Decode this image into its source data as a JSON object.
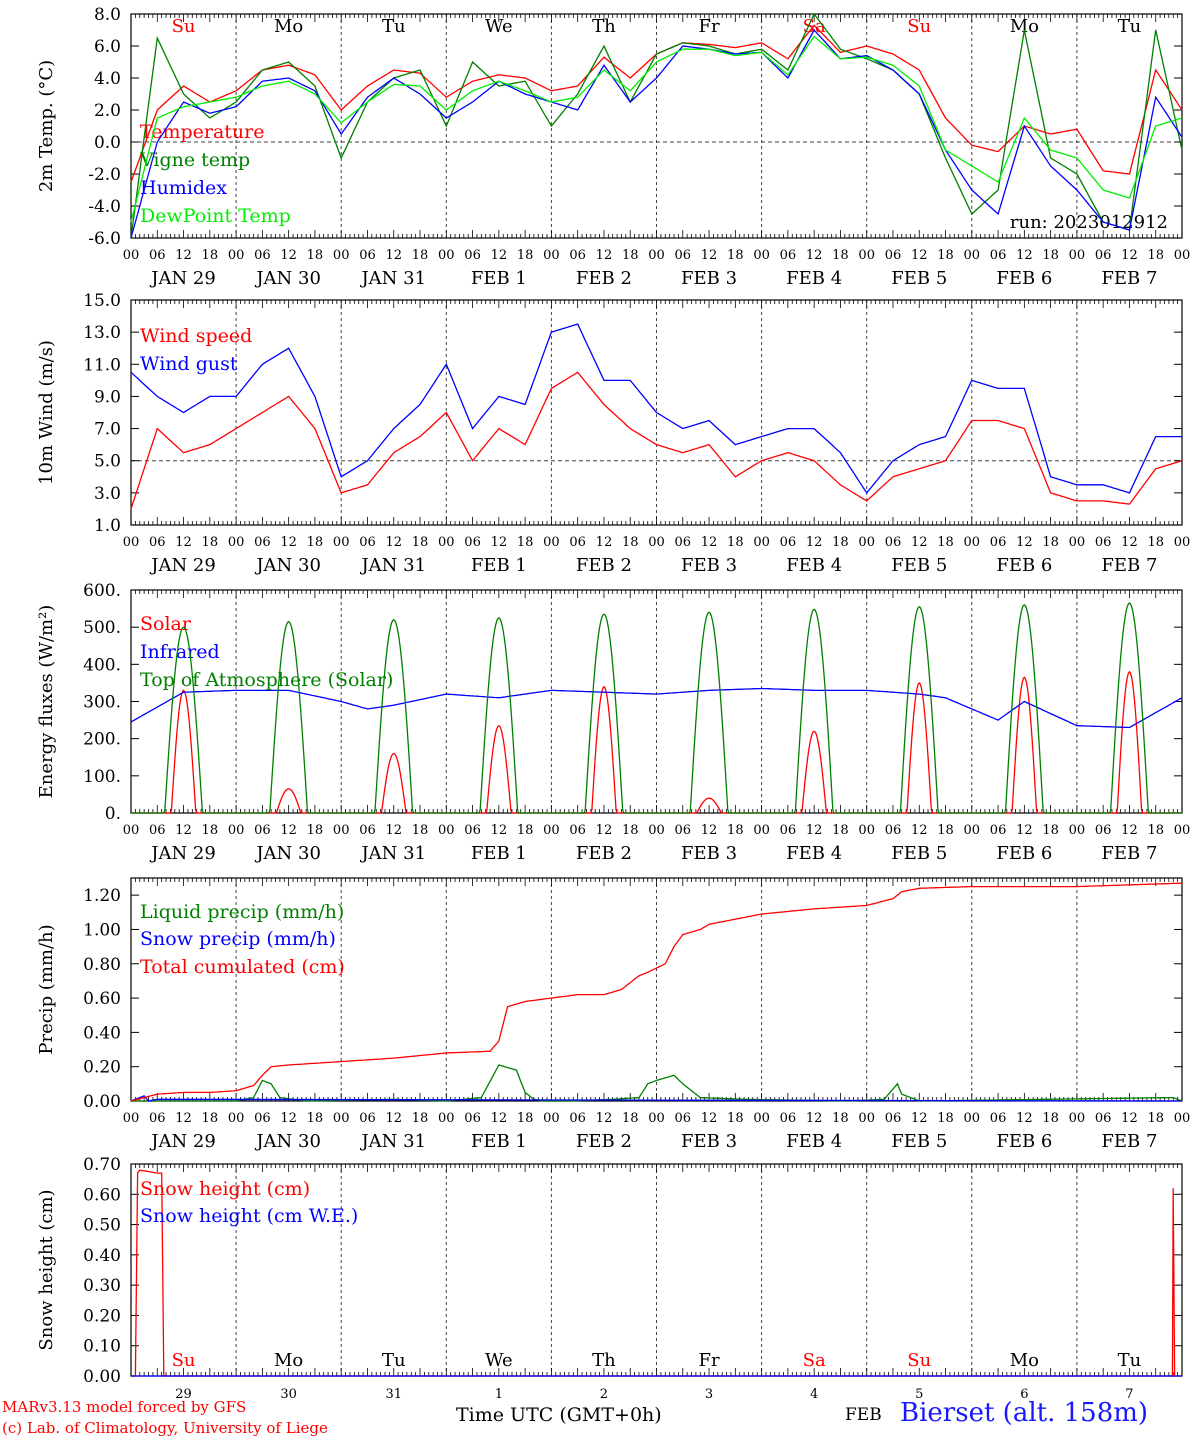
{
  "chart_data": [
    {
      "type": "line",
      "ylabel": "2m Temp. (°C)",
      "ylim": [
        -6,
        8
      ],
      "yticks": [
        "8.0",
        "6.0",
        "4.0",
        "2.0",
        "0.0",
        "-2.0",
        "-4.0",
        "-6.0"
      ],
      "ref_line": 0,
      "annotation": "run: 2023012912",
      "day_abbrev": [
        {
          "label": "Su",
          "color": "#ff0000"
        },
        {
          "label": "Mo",
          "color": "#000000"
        },
        {
          "label": "Tu",
          "color": "#000000"
        },
        {
          "label": "We",
          "color": "#000000"
        },
        {
          "label": "Th",
          "color": "#000000"
        },
        {
          "label": "Fr",
          "color": "#000000"
        },
        {
          "label": "Sa",
          "color": "#ff0000"
        },
        {
          "label": "Su",
          "color": "#ff0000"
        },
        {
          "label": "Mo",
          "color": "#000000"
        },
        {
          "label": "Tu",
          "color": "#000000"
        }
      ],
      "x_hours": [
        0,
        6,
        12,
        18,
        24,
        30,
        36,
        42,
        48,
        54,
        60,
        66,
        72,
        78,
        84,
        90,
        96,
        102,
        108,
        114,
        120,
        126,
        132,
        138,
        144,
        150,
        156,
        162,
        168,
        174,
        180,
        186,
        192,
        198,
        204,
        210,
        216,
        222,
        228,
        234,
        240
      ],
      "series": [
        {
          "name": "Temperature",
          "color": "#ff0000",
          "values": [
            -2.5,
            2.0,
            3.5,
            2.5,
            3.2,
            4.5,
            4.8,
            4.2,
            2.0,
            3.5,
            4.5,
            4.3,
            2.8,
            3.8,
            4.2,
            4.0,
            3.2,
            3.5,
            5.3,
            4.0,
            5.5,
            6.2,
            6.1,
            5.9,
            6.2,
            5.2,
            7.3,
            5.6,
            6.0,
            5.5,
            4.5,
            1.5,
            -0.2,
            -0.6,
            1.0,
            0.5,
            0.8,
            -1.8,
            -2.0,
            4.5,
            2.0
          ]
        },
        {
          "name": "Vigne temp",
          "color": "#008000",
          "values": [
            -6.0,
            6.5,
            3.0,
            1.5,
            2.5,
            4.5,
            5.0,
            3.5,
            -1.0,
            2.5,
            4.0,
            4.5,
            1.0,
            5.0,
            3.5,
            3.8,
            1.0,
            3.0,
            6.0,
            2.5,
            5.5,
            6.2,
            6.0,
            5.5,
            5.8,
            4.5,
            8.0,
            5.8,
            5.2,
            4.5,
            3.0,
            -1.0,
            -4.5,
            -3.0,
            7.0,
            -1.0,
            -2.0,
            -5.0,
            -5.5,
            7.0,
            -0.5
          ]
        },
        {
          "name": "Humidex",
          "color": "#0000ff",
          "values": [
            -6.0,
            0.0,
            2.5,
            1.8,
            2.2,
            3.8,
            4.0,
            3.2,
            0.5,
            2.8,
            4.0,
            3.0,
            1.5,
            2.5,
            3.8,
            3.0,
            2.5,
            2.0,
            4.8,
            2.5,
            4.0,
            6.0,
            5.8,
            5.5,
            5.6,
            4.0,
            7.0,
            5.2,
            5.4,
            4.5,
            3.0,
            -0.5,
            -3.0,
            -4.5,
            1.0,
            -1.5,
            -3.0,
            -5.0,
            -5.5,
            2.8,
            0.3
          ]
        },
        {
          "name": "DewPoint Temp",
          "color": "#00ee00",
          "values": [
            -5.0,
            1.5,
            2.2,
            2.5,
            2.8,
            3.5,
            3.8,
            3.0,
            1.2,
            2.5,
            3.6,
            3.5,
            2.0,
            3.2,
            3.8,
            3.2,
            2.5,
            2.8,
            4.5,
            3.2,
            5.0,
            5.8,
            5.8,
            5.4,
            5.6,
            4.2,
            6.6,
            5.2,
            5.3,
            4.8,
            3.5,
            -0.5,
            -1.5,
            -2.5,
            1.5,
            -0.5,
            -1.0,
            -3.0,
            -3.5,
            1.0,
            1.5
          ]
        }
      ]
    },
    {
      "type": "line",
      "ylabel": "10m Wind (m/s)",
      "ylim": [
        1,
        15
      ],
      "yticks": [
        "15.0",
        "13.0",
        "11.0",
        "9.0",
        "7.0",
        "5.0",
        "3.0",
        "1.0"
      ],
      "ref_line": 5,
      "x_hours": [
        0,
        6,
        12,
        18,
        24,
        30,
        36,
        42,
        48,
        54,
        60,
        66,
        72,
        78,
        84,
        90,
        96,
        102,
        108,
        114,
        120,
        126,
        132,
        138,
        144,
        150,
        156,
        162,
        168,
        174,
        180,
        186,
        192,
        198,
        204,
        210,
        216,
        222,
        228,
        234,
        240
      ],
      "series": [
        {
          "name": "Wind speed",
          "color": "#ff0000",
          "values": [
            2.0,
            7.0,
            5.5,
            6.0,
            7.0,
            8.0,
            9.0,
            7.0,
            3.0,
            3.5,
            5.5,
            6.5,
            8.0,
            5.0,
            7.0,
            6.0,
            9.5,
            10.5,
            8.5,
            7.0,
            6.0,
            5.5,
            6.0,
            4.0,
            5.0,
            5.5,
            5.0,
            3.5,
            2.5,
            4.0,
            4.5,
            5.0,
            7.5,
            7.5,
            7.0,
            3.0,
            2.5,
            2.5,
            2.3,
            4.5,
            5.0
          ]
        },
        {
          "name": "Wind gust",
          "color": "#0000ff",
          "values": [
            10.5,
            9.0,
            8.0,
            9.0,
            9.0,
            11.0,
            12.0,
            9.0,
            4.0,
            5.0,
            7.0,
            8.5,
            11.0,
            7.0,
            9.0,
            8.5,
            13.0,
            13.5,
            10.0,
            10.0,
            8.0,
            7.0,
            7.5,
            6.0,
            6.5,
            7.0,
            7.0,
            5.5,
            3.0,
            5.0,
            6.0,
            6.5,
            10.0,
            9.5,
            9.5,
            4.0,
            3.5,
            3.5,
            3.0,
            6.5,
            6.5
          ]
        }
      ]
    },
    {
      "type": "line",
      "ylabel": "Energy fluxes (W/m²)",
      "ylim": [
        0,
        600
      ],
      "yticks": [
        "600.",
        "500.",
        "400.",
        "300.",
        "200.",
        "100.",
        "0."
      ],
      "solar_peak_hour": 12,
      "series": [
        {
          "name": "Solar",
          "color": "#ff0000",
          "daily_peak": [
            330,
            65,
            160,
            235,
            340,
            40,
            220,
            350,
            365,
            380
          ]
        },
        {
          "name": "Infrared",
          "color": "#0000ff",
          "x_hours": [
            0,
            12,
            24,
            36,
            48,
            54,
            60,
            72,
            84,
            96,
            108,
            120,
            132,
            144,
            156,
            168,
            180,
            186,
            192,
            198,
            204,
            216,
            228,
            240
          ],
          "values": [
            245,
            325,
            330,
            330,
            300,
            280,
            290,
            320,
            310,
            330,
            325,
            320,
            330,
            335,
            330,
            330,
            320,
            310,
            280,
            250,
            300,
            235,
            230,
            310
          ]
        },
        {
          "name": "Top of Atmosphere (Solar)",
          "color": "#008000",
          "daily_peak": [
            500,
            515,
            520,
            525,
            535,
            540,
            548,
            555,
            560,
            565
          ]
        }
      ]
    },
    {
      "type": "line",
      "ylabel": "Precip (mm/h)",
      "ylim": [
        0,
        1.3
      ],
      "yticks": [
        "1.20",
        "1.00",
        "0.80",
        "0.60",
        "0.40",
        "0.20",
        "0.00"
      ],
      "series": [
        {
          "name": "Liquid precip (mm/h)",
          "color": "#008000",
          "x_hours": [
            0,
            24,
            28,
            30,
            32,
            34,
            40,
            60,
            72,
            80,
            84,
            88,
            90,
            92,
            94,
            100,
            110,
            116,
            118,
            120,
            124,
            126,
            130,
            140,
            164,
            172,
            175,
            176,
            180,
            238,
            240
          ],
          "values": [
            0,
            0,
            0.02,
            0.12,
            0.1,
            0.02,
            0,
            0.01,
            0,
            0.02,
            0.21,
            0.18,
            0.05,
            0.01,
            0,
            0,
            0.01,
            0.02,
            0.1,
            0.12,
            0.15,
            0.1,
            0.02,
            0.01,
            0,
            0.01,
            0.1,
            0.04,
            0,
            0.02,
            0
          ]
        },
        {
          "name": "Snow precip (mm/h)",
          "color": "#0000ff",
          "x_hours": [
            0,
            3,
            4,
            6,
            240
          ],
          "values": [
            0,
            0.03,
            0,
            0.01,
            0
          ]
        },
        {
          "name": "Total cumulated (cm)",
          "color": "#ff0000",
          "x_hours": [
            0,
            6,
            12,
            18,
            24,
            28,
            30,
            32,
            36,
            48,
            60,
            72,
            82,
            84,
            86,
            90,
            96,
            102,
            108,
            112,
            116,
            118,
            122,
            124,
            126,
            130,
            132,
            144,
            156,
            168,
            174,
            176,
            180,
            192,
            204,
            216,
            228,
            240
          ],
          "values": [
            0,
            0.04,
            0.05,
            0.05,
            0.06,
            0.09,
            0.15,
            0.2,
            0.21,
            0.23,
            0.25,
            0.28,
            0.29,
            0.35,
            0.55,
            0.58,
            0.6,
            0.62,
            0.62,
            0.65,
            0.73,
            0.75,
            0.8,
            0.9,
            0.97,
            1.0,
            1.03,
            1.09,
            1.12,
            1.14,
            1.18,
            1.22,
            1.24,
            1.25,
            1.25,
            1.25,
            1.26,
            1.27
          ]
        }
      ]
    },
    {
      "type": "line",
      "ylabel": "Snow height (cm)",
      "ylim": [
        0,
        0.7
      ],
      "yticks": [
        "0.70",
        "0.60",
        "0.50",
        "0.40",
        "0.30",
        "0.20",
        "0.10",
        "0.00"
      ],
      "day_numbers": [
        "29",
        "30",
        "31",
        "1",
        "2",
        "3",
        "4",
        "5",
        "6",
        "7"
      ],
      "series": [
        {
          "name": "Snow height (cm)",
          "color": "#ff0000",
          "x_hours": [
            0,
            1,
            1.5,
            2,
            6,
            7,
            7.5,
            237.8,
            238,
            238.3,
            240
          ],
          "values": [
            0,
            0,
            0.67,
            0.68,
            0.67,
            0.67,
            0,
            0,
            0.62,
            0,
            0
          ]
        },
        {
          "name": "Snow height (cm W.E.)",
          "color": "#0000ff",
          "x_hours": [
            0,
            240
          ],
          "values": [
            0,
            0
          ]
        }
      ]
    }
  ],
  "day_names": [
    "JAN 29",
    "JAN 30",
    "JAN 31",
    "FEB  1",
    "FEB  2",
    "FEB  3",
    "FEB  4",
    "FEB  5",
    "FEB  6",
    "FEB  7"
  ],
  "hour_labels": [
    "00",
    "06",
    "12",
    "18"
  ],
  "hour_end_label": "00",
  "footer": {
    "credit_line1": "MARv3.13 model forced by GFS",
    "credit_line2": "(c) Lab. of Climatology, University of Liege",
    "time_unit": "Time UTC (GMT+0h)",
    "month": "FEB",
    "station": "Bierset (alt. 158m)"
  }
}
